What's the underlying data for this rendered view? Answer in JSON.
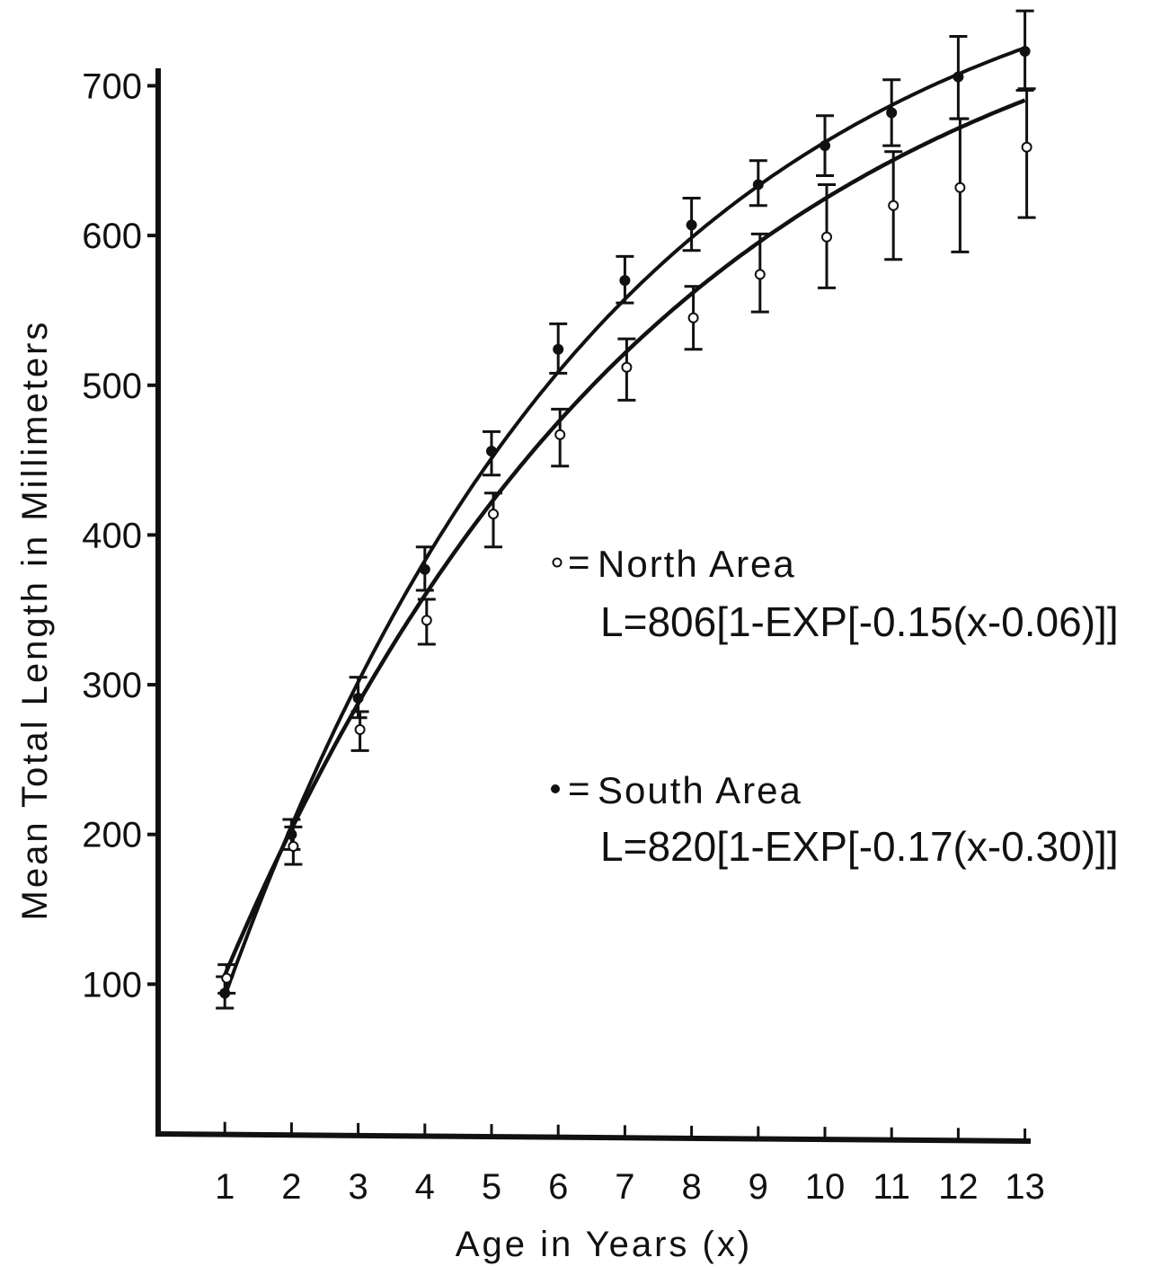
{
  "chart_data": {
    "type": "line",
    "xlabel": "Age in Years (x)",
    "ylabel": "Mean Total Length in Millimeters",
    "xlim": [
      0,
      13.3
    ],
    "ylim": [
      0,
      730
    ],
    "x_ticks": [
      1,
      2,
      3,
      4,
      5,
      6,
      7,
      8,
      9,
      10,
      11,
      12,
      13
    ],
    "y_ticks": [
      100,
      200,
      300,
      400,
      500,
      600,
      700
    ],
    "grid": false,
    "legend_position": "center-right",
    "series": [
      {
        "name": "North Area",
        "marker": "open-circle",
        "equation": "L=806[1-EXP[-0.15(x-0.06)]]",
        "model": {
          "Linf": 806,
          "k": 0.15,
          "t0": 0.06
        },
        "x": [
          1,
          2,
          3,
          4,
          5,
          6,
          7,
          8,
          9,
          10,
          11,
          12,
          13
        ],
        "y": [
          104,
          192,
          270,
          343,
          414,
          467,
          512,
          545,
          574,
          599,
          620,
          632,
          659
        ],
        "err_low": [
          94,
          180,
          256,
          327,
          392,
          446,
          490,
          524,
          549,
          565,
          584,
          589,
          612
        ],
        "err_high": [
          113,
          205,
          282,
          357,
          428,
          484,
          531,
          566,
          601,
          634,
          656,
          678,
          698
        ]
      },
      {
        "name": "South Area",
        "marker": "filled-circle",
        "equation": "L=820[1-EXP[-0.17(x-0.30)]]",
        "model": {
          "Linf": 820,
          "k": 0.17,
          "t0": 0.3
        },
        "x": [
          1,
          2,
          3,
          4,
          5,
          6,
          7,
          8,
          9,
          10,
          11,
          12,
          13
        ],
        "y": [
          94,
          200,
          291,
          377,
          456,
          524,
          570,
          607,
          634,
          660,
          682,
          706,
          723
        ],
        "err_low": [
          84,
          190,
          278,
          363,
          440,
          508,
          555,
          590,
          620,
          640,
          660,
          678,
          697
        ],
        "err_high": [
          105,
          210,
          305,
          392,
          469,
          541,
          586,
          625,
          650,
          680,
          704,
          733,
          750
        ]
      }
    ]
  }
}
